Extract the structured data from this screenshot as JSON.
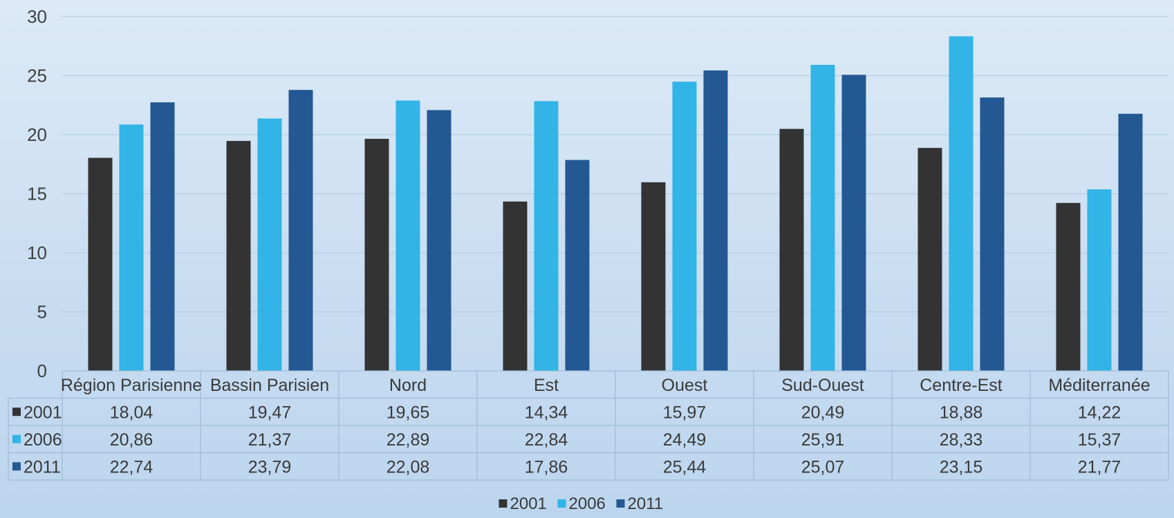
{
  "chart_data": {
    "type": "bar",
    "categories": [
      "Région Parisienne",
      "Bassin Parisien",
      "Nord",
      "Est",
      "Ouest",
      "Sud-Ouest",
      "Centre-Est",
      "Méditerranée"
    ],
    "series": [
      {
        "name": "2001",
        "color": "#333333",
        "values": [
          18.04,
          19.47,
          19.65,
          14.34,
          15.97,
          20.49,
          18.88,
          14.22
        ],
        "labels": [
          "18,04",
          "19,47",
          "19,65",
          "14,34",
          "15,97",
          "20,49",
          "18,88",
          "14,22"
        ]
      },
      {
        "name": "2006",
        "color": "#32b4e6",
        "values": [
          20.86,
          21.37,
          22.89,
          22.84,
          24.49,
          25.91,
          28.33,
          15.37
        ],
        "labels": [
          "20,86",
          "21,37",
          "22,89",
          "22,84",
          "24,49",
          "25,91",
          "28,33",
          "15,37"
        ]
      },
      {
        "name": "2011",
        "color": "#235893",
        "values": [
          22.74,
          23.79,
          22.08,
          17.86,
          25.44,
          25.07,
          23.15,
          21.77
        ],
        "labels": [
          "22,74",
          "23,79",
          "22,08",
          "17,86",
          "25,44",
          "25,07",
          "23,15",
          "21,77"
        ]
      }
    ],
    "ylim": [
      0,
      30
    ],
    "yticks": [
      0,
      5,
      10,
      15,
      20,
      25,
      30
    ],
    "ytick_labels": [
      "0",
      "5",
      "10",
      "15",
      "20",
      "25",
      "30"
    ],
    "grid": true,
    "data_table": true,
    "legend": {
      "position": "bottom",
      "entries": [
        "2001",
        "2006",
        "2011"
      ]
    },
    "title": "",
    "xlabel": "",
    "ylabel": ""
  }
}
